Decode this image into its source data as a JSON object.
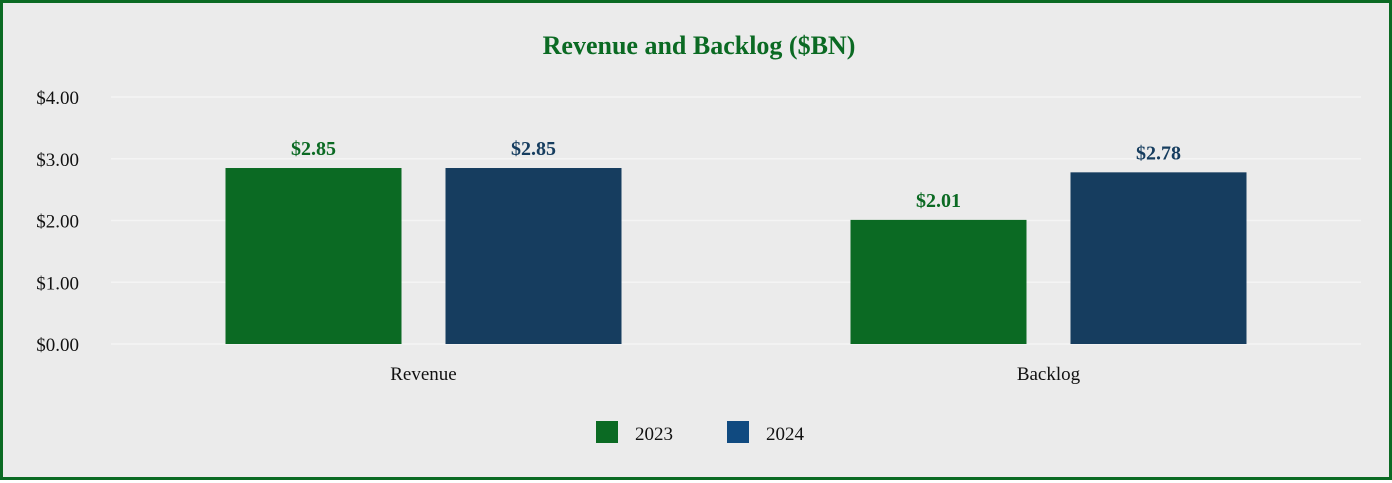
{
  "chart_data": {
    "type": "bar",
    "title": "Revenue and Backlog ($BN)",
    "categories": [
      "Revenue",
      "Backlog"
    ],
    "series": [
      {
        "name": "2023",
        "values": [
          2.85,
          2.01
        ],
        "labels": [
          "$2.85",
          "$2.01"
        ],
        "color": "#0b6a23",
        "legend_color": "#0b6a23",
        "label_color": "#0b6a23"
      },
      {
        "name": "2024",
        "values": [
          2.85,
          2.78
        ],
        "labels": [
          "$2.85",
          "$2.78"
        ],
        "color": "#163d5f",
        "legend_color": "#104a80",
        "label_color": "#163d5f"
      }
    ],
    "y_ticks": [
      "$0.00",
      "$1.00",
      "$2.00",
      "$3.00",
      "$4.00"
    ],
    "ylim": [
      0,
      4
    ],
    "grid": true,
    "legend_position": "bottom-center",
    "title_color": "#0b6a23",
    "border_color": "#0b6a23",
    "background": "#ebebeb"
  }
}
